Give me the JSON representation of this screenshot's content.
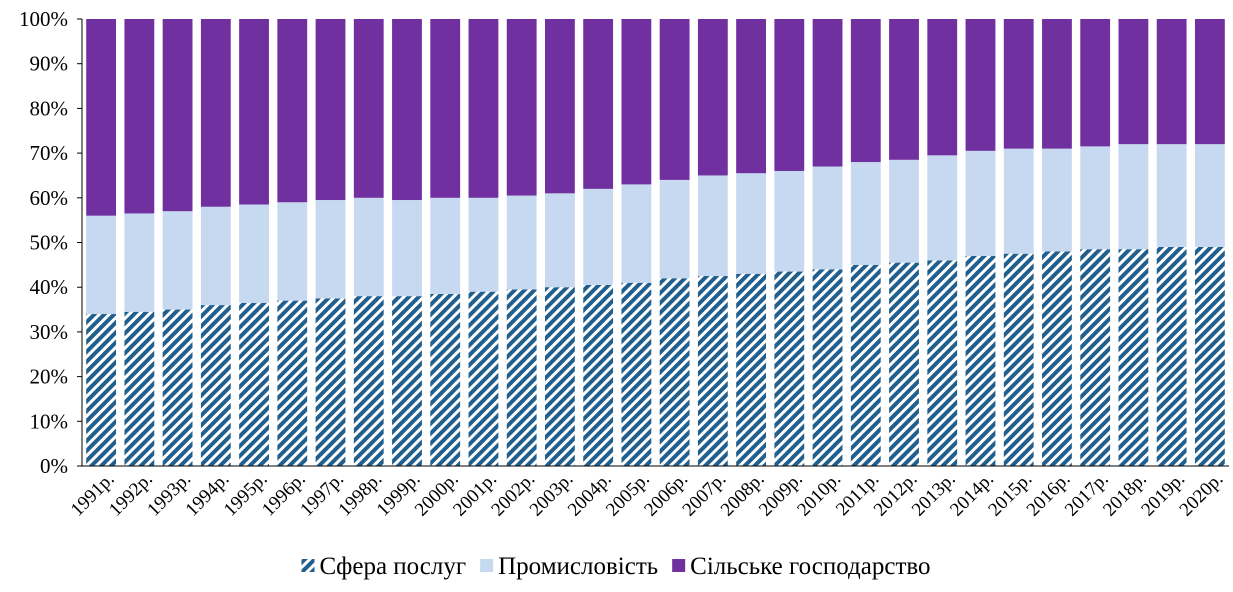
{
  "chart_data": {
    "type": "bar",
    "stacked": true,
    "normalized": true,
    "title": "",
    "xlabel": "",
    "ylabel": "",
    "ylim": [
      0,
      100
    ],
    "y_ticks": [
      "0%",
      "10%",
      "20%",
      "30%",
      "40%",
      "50%",
      "60%",
      "70%",
      "80%",
      "90%",
      "100%"
    ],
    "grid": false,
    "legend_position": "bottom",
    "categories": [
      "1991р.",
      "1992р.",
      "1993р.",
      "1994р.",
      "1995р.",
      "1996р.",
      "1997р.",
      "1998р.",
      "1999р.",
      "2000р.",
      "2001р.",
      "2002р.",
      "2003р.",
      "2004р.",
      "2005р.",
      "2006р.",
      "2007р.",
      "2008р.",
      "2009р.",
      "2010р.",
      "2011р.",
      "2012р.",
      "2013р.",
      "2014р.",
      "2015р.",
      "2016р.",
      "2017р.",
      "2018р.",
      "2019р.",
      "2020р."
    ],
    "series": [
      {
        "name": "Сфера послуг",
        "pattern": "diagonal-stripes",
        "color": "#215f8f",
        "values": [
          34,
          34.5,
          35,
          36,
          36.5,
          37,
          37.5,
          38,
          38,
          38.5,
          39,
          39.5,
          40,
          40.5,
          41,
          42,
          42.5,
          43,
          43.5,
          44,
          45,
          45.5,
          46,
          47,
          47.5,
          48,
          48.5,
          48.5,
          49,
          49
        ]
      },
      {
        "name": "Промисловість",
        "color": "#c6d9f0",
        "values": [
          22,
          22,
          22,
          22,
          22,
          22,
          22,
          22,
          21.5,
          21.5,
          21,
          21,
          21,
          21.5,
          22,
          22,
          22.5,
          22.5,
          22.5,
          23,
          23,
          23,
          23.5,
          23.5,
          23.5,
          23,
          23,
          23.5,
          23,
          23
        ]
      },
      {
        "name": "Сільське господарство",
        "color": "#7030a0",
        "values": [
          44,
          43.5,
          43,
          42,
          41.5,
          41,
          40.5,
          40,
          40.5,
          40,
          40,
          39.5,
          39,
          38,
          37,
          36,
          35,
          34.5,
          34,
          33,
          32,
          31.5,
          30.5,
          29.5,
          29,
          29,
          28.5,
          28,
          28,
          28
        ]
      }
    ]
  }
}
